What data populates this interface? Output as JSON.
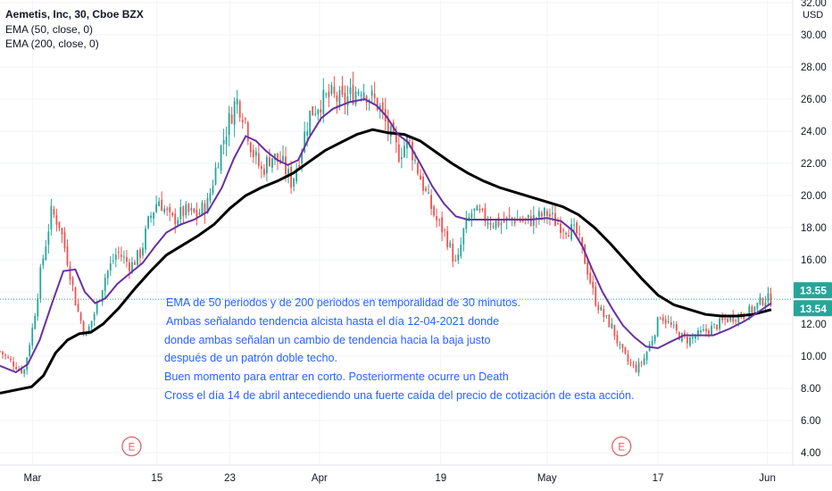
{
  "legend": {
    "title": "Aemetis, Inc, 30, Cboe BZX",
    "ema50": "EMA (50, close, 0)",
    "ema200": "EMA (200, close, 0)"
  },
  "annotation": [
    "EMA de 50 periodos y de 200 periodos en temporalidad de 30 minutos.",
    "Ambas señalando tendencia alcista hasta el día 12-04-2021 donde",
    "donde ambas señalan un cambio de tendencia hacia la baja justo",
    "después de un patrón doble techo.",
    "Buen momento para entrar en corto. Posteriormente ocurre un Death",
    "Cross el día 14 de abril antecediendo una fuerte caída del precio de cotización de esta acción."
  ],
  "colors": {
    "ema50": "#6a2fa0",
    "ema200": "#000000",
    "up": "#26a69a",
    "down": "#ef5350",
    "earnings": "#e05a5a",
    "annotation_text": "#2962ff",
    "price_line": "#26a69a"
  },
  "chart_data": {
    "type": "line",
    "symbol": "Aemetis, Inc, 30, Cboe BZX",
    "currency": "USD",
    "ylim": [
      3.3,
      32.5
    ],
    "yticks": [
      4,
      6,
      8,
      10,
      12,
      14,
      16,
      18,
      20,
      22,
      24,
      26,
      28,
      30,
      32
    ],
    "ytick_labels": [
      "4.00",
      "6.00",
      "8.00",
      "10.00",
      "12.00",
      "14.00",
      "16.00",
      "18.00",
      "20.00",
      "22.00",
      "24.00",
      "26.00",
      "28.00",
      "30.00",
      "32.00"
    ],
    "xlim": [
      0,
      100
    ],
    "xticks": [
      {
        "label": "Mar",
        "t": 4.1
      },
      {
        "label": "15",
        "t": 19.8
      },
      {
        "label": "23",
        "t": 29.0
      },
      {
        "label": "Apr",
        "t": 40.3
      },
      {
        "label": "19",
        "t": 55.6
      },
      {
        "label": "May",
        "t": 69.0
      },
      {
        "label": "17",
        "t": 83.0
      },
      {
        "label": "Jun",
        "t": 96.8
      }
    ],
    "price_series": {
      "name": "Price",
      "points": [
        [
          0,
          10.3
        ],
        [
          1.5,
          9.6
        ],
        [
          3,
          9.0
        ],
        [
          4.2,
          12.0
        ],
        [
          5.2,
          15.5
        ],
        [
          6.5,
          19.0
        ],
        [
          7.5,
          18.2
        ],
        [
          8.6,
          15.8
        ],
        [
          9.6,
          13.2
        ],
        [
          10.8,
          11.2
        ],
        [
          12,
          12.8
        ],
        [
          13.3,
          15.0
        ],
        [
          14.8,
          16.5
        ],
        [
          16.5,
          15.6
        ],
        [
          17.8,
          16.5
        ],
        [
          18.8,
          18.5
        ],
        [
          20,
          19.8
        ],
        [
          21.6,
          18.4
        ],
        [
          23.2,
          19.0
        ],
        [
          24.8,
          18.8
        ],
        [
          26.2,
          19.5
        ],
        [
          27.6,
          22.5
        ],
        [
          28.8,
          24.5
        ],
        [
          29.8,
          26.0
        ],
        [
          30.8,
          25.0
        ],
        [
          31.8,
          22.8
        ],
        [
          33,
          21.5
        ],
        [
          34.2,
          22.5
        ],
        [
          35.6,
          22.0
        ],
        [
          36.8,
          20.8
        ],
        [
          37.8,
          22.5
        ],
        [
          39,
          25.0
        ],
        [
          40.3,
          25.8
        ],
        [
          41.8,
          26.2
        ],
        [
          43.2,
          25.8
        ],
        [
          44.6,
          26.4
        ],
        [
          45.6,
          26.8
        ],
        [
          46.6,
          26.2
        ],
        [
          47.8,
          25.6
        ],
        [
          49,
          24.0
        ],
        [
          50.3,
          22.6
        ],
        [
          51.5,
          23.5
        ],
        [
          52.7,
          21.6
        ],
        [
          53.8,
          20.0
        ],
        [
          55,
          18.5
        ],
        [
          56.2,
          17.6
        ],
        [
          57.6,
          15.5
        ],
        [
          58.5,
          17.8
        ],
        [
          59.6,
          19.0
        ],
        [
          60.8,
          18.7
        ],
        [
          62,
          18.4
        ],
        [
          63.3,
          18.3
        ],
        [
          64.6,
          18.6
        ],
        [
          66.2,
          18.4
        ],
        [
          67.8,
          18.6
        ],
        [
          69,
          18.9
        ],
        [
          70.2,
          18.3
        ],
        [
          71.5,
          18.0
        ],
        [
          72.8,
          17.6
        ],
        [
          74,
          15.6
        ],
        [
          75,
          13.6
        ],
        [
          76,
          12.6
        ],
        [
          77.2,
          11.8
        ],
        [
          78.2,
          10.5
        ],
        [
          79.3,
          9.6
        ],
        [
          80.3,
          9.2
        ],
        [
          81.2,
          9.8
        ],
        [
          82.2,
          11.0
        ],
        [
          83.3,
          12.6
        ],
        [
          84.4,
          12.0
        ],
        [
          85.6,
          11.3
        ],
        [
          86.8,
          11.0
        ],
        [
          88,
          11.3
        ],
        [
          89.2,
          11.6
        ],
        [
          90.4,
          11.9
        ],
        [
          91.6,
          12.3
        ],
        [
          92.8,
          12.5
        ],
        [
          94,
          12.6
        ],
        [
          95.2,
          13.0
        ],
        [
          96.4,
          13.6
        ],
        [
          97.3,
          13.5
        ]
      ],
      "last": 13.55
    },
    "series": [
      {
        "name": "EMA (50, close, 0)",
        "points": [
          [
            0,
            9.4
          ],
          [
            2,
            9.0
          ],
          [
            3.5,
            9.5
          ],
          [
            5,
            11.0
          ],
          [
            6.5,
            13.2
          ],
          [
            8,
            15.3
          ],
          [
            9.5,
            15.4
          ],
          [
            10.7,
            14.0
          ],
          [
            12,
            13.3
          ],
          [
            13.3,
            13.6
          ],
          [
            14.8,
            14.5
          ],
          [
            16.5,
            15.2
          ],
          [
            18,
            15.8
          ],
          [
            19.5,
            16.8
          ],
          [
            21,
            17.7
          ],
          [
            22.8,
            18.2
          ],
          [
            24.5,
            18.5
          ],
          [
            26.2,
            19.0
          ],
          [
            28,
            20.5
          ],
          [
            29.5,
            22.3
          ],
          [
            31,
            23.7
          ],
          [
            32.3,
            23.4
          ],
          [
            33.5,
            22.8
          ],
          [
            35,
            22.2
          ],
          [
            36.3,
            21.9
          ],
          [
            37.6,
            22.2
          ],
          [
            39,
            23.6
          ],
          [
            40.5,
            24.8
          ],
          [
            42,
            25.4
          ],
          [
            44,
            25.8
          ],
          [
            46,
            26.0
          ],
          [
            47.5,
            25.6
          ],
          [
            48.8,
            24.9
          ],
          [
            50.2,
            23.8
          ],
          [
            51.5,
            23.3
          ],
          [
            53,
            22.0
          ],
          [
            54.5,
            20.6
          ],
          [
            56,
            19.5
          ],
          [
            57.5,
            18.7
          ],
          [
            59,
            18.5
          ],
          [
            61,
            18.5
          ],
          [
            63,
            18.5
          ],
          [
            65,
            18.5
          ],
          [
            67,
            18.5
          ],
          [
            69,
            18.6
          ],
          [
            70.8,
            18.4
          ],
          [
            72.3,
            17.8
          ],
          [
            73.5,
            16.8
          ],
          [
            74.8,
            15.3
          ],
          [
            76,
            14.0
          ],
          [
            77.3,
            12.9
          ],
          [
            78.6,
            11.9
          ],
          [
            80,
            11.2
          ],
          [
            81.5,
            10.6
          ],
          [
            83,
            10.5
          ],
          [
            84.6,
            10.9
          ],
          [
            86.3,
            11.3
          ],
          [
            88,
            11.3
          ],
          [
            90,
            11.3
          ],
          [
            92,
            11.7
          ],
          [
            94,
            12.2
          ],
          [
            95.8,
            12.8
          ],
          [
            97.3,
            13.3
          ]
        ]
      },
      {
        "name": "EMA (200, close, 0)",
        "points": [
          [
            0,
            7.7
          ],
          [
            2,
            7.9
          ],
          [
            4,
            8.1
          ],
          [
            5.5,
            8.8
          ],
          [
            7,
            10.2
          ],
          [
            8.5,
            11.0
          ],
          [
            10,
            11.4
          ],
          [
            11.5,
            11.5
          ],
          [
            13,
            12.0
          ],
          [
            15,
            13.0
          ],
          [
            17,
            14.2
          ],
          [
            19,
            15.3
          ],
          [
            21,
            16.3
          ],
          [
            23,
            16.9
          ],
          [
            25,
            17.5
          ],
          [
            27,
            18.2
          ],
          [
            29,
            19.2
          ],
          [
            31,
            20.0
          ],
          [
            33,
            20.5
          ],
          [
            35,
            20.9
          ],
          [
            37,
            21.4
          ],
          [
            39,
            22.1
          ],
          [
            41,
            22.8
          ],
          [
            43,
            23.3
          ],
          [
            45,
            23.8
          ],
          [
            47,
            24.1
          ],
          [
            49,
            23.9
          ],
          [
            51,
            23.8
          ],
          [
            53,
            23.4
          ],
          [
            55,
            22.7
          ],
          [
            57,
            22.0
          ],
          [
            59,
            21.4
          ],
          [
            61,
            20.9
          ],
          [
            63,
            20.5
          ],
          [
            65,
            20.2
          ],
          [
            67,
            19.9
          ],
          [
            69,
            19.6
          ],
          [
            71,
            19.3
          ],
          [
            73,
            18.8
          ],
          [
            75,
            18.0
          ],
          [
            77,
            17.0
          ],
          [
            79,
            15.9
          ],
          [
            81,
            14.8
          ],
          [
            83,
            13.8
          ],
          [
            85,
            13.2
          ],
          [
            87,
            12.9
          ],
          [
            89,
            12.6
          ],
          [
            91,
            12.5
          ],
          [
            93,
            12.5
          ],
          [
            95,
            12.6
          ],
          [
            97.3,
            12.9
          ]
        ]
      }
    ],
    "price_labels": [
      {
        "value": "13.55",
        "y": 13.55,
        "bg": "#26a69a"
      },
      {
        "value": "13.54",
        "y": 13.54,
        "bg": "#26a69a"
      }
    ],
    "earnings_markers": [
      {
        "label": "E",
        "t": 16.6
      },
      {
        "label": "E",
        "t": 78.4
      }
    ]
  }
}
